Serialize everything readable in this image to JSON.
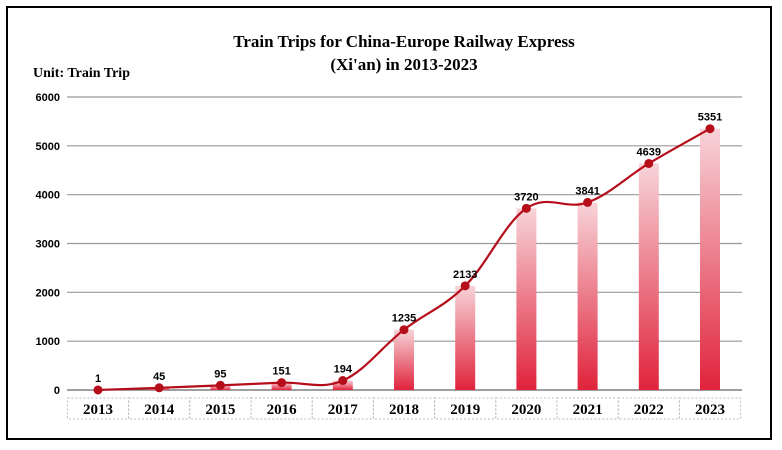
{
  "chart_data": {
    "type": "bar",
    "title_line1": "Train Trips for China-Europe Railway Express",
    "title_line2": "(Xi'an) in 2013-2023",
    "unit_label": "Unit: Train Trip",
    "categories": [
      "2013",
      "2014",
      "2015",
      "2016",
      "2017",
      "2018",
      "2019",
      "2020",
      "2021",
      "2022",
      "2023"
    ],
    "values": [
      1,
      45,
      95,
      151,
      194,
      1235,
      2133,
      3720,
      3841,
      4639,
      5351
    ],
    "ylim": [
      0,
      6000
    ],
    "yticks": [
      0,
      1000,
      2000,
      3000,
      4000,
      5000,
      6000
    ],
    "grid": true,
    "overlay": "line with markers",
    "colors": {
      "bar_top": "#f7d4d9",
      "bar_bottom": "#e0233b",
      "line": "#b50d1a",
      "grid": "#999999"
    }
  }
}
